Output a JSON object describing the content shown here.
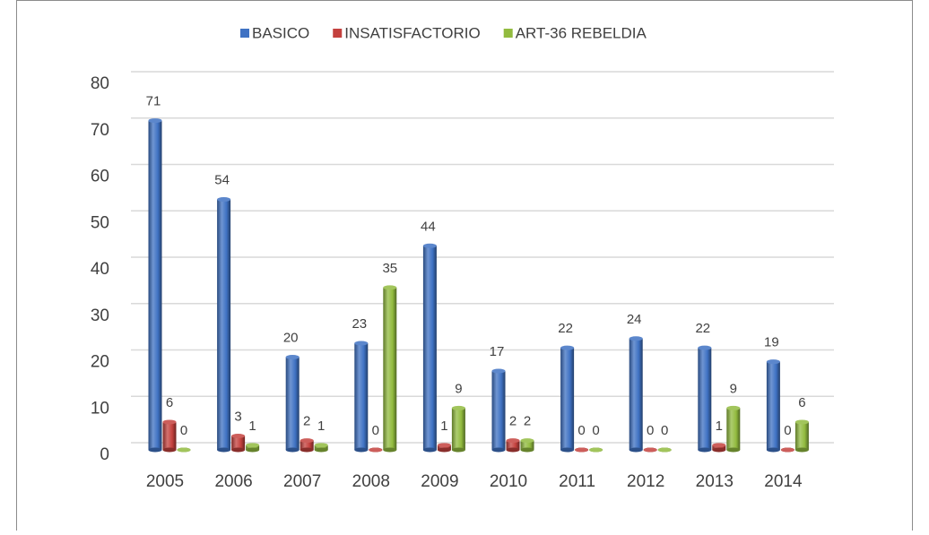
{
  "chart_data": {
    "type": "bar",
    "categories": [
      "2005",
      "2006",
      "2007",
      "2008",
      "2009",
      "2010",
      "2011",
      "2012",
      "2013",
      "2014"
    ],
    "series": [
      {
        "name": "BASICO",
        "color": "#3f72c3",
        "values": [
          71,
          54,
          20,
          23,
          44,
          17,
          22,
          24,
          22,
          19
        ]
      },
      {
        "name": "INSATISFACTORIO",
        "color": "#c4413e",
        "values": [
          6,
          3,
          2,
          0,
          1,
          2,
          0,
          0,
          1,
          0
        ]
      },
      {
        "name": "ART-36 REBELDIA",
        "color": "#92bb3f",
        "values": [
          0,
          1,
          1,
          35,
          9,
          2,
          0,
          0,
          9,
          6
        ]
      }
    ],
    "ylim": [
      0,
      80
    ],
    "yticks": [
      0,
      10,
      20,
      30,
      40,
      50,
      60,
      70,
      80
    ],
    "grid": true,
    "legend": "top"
  }
}
